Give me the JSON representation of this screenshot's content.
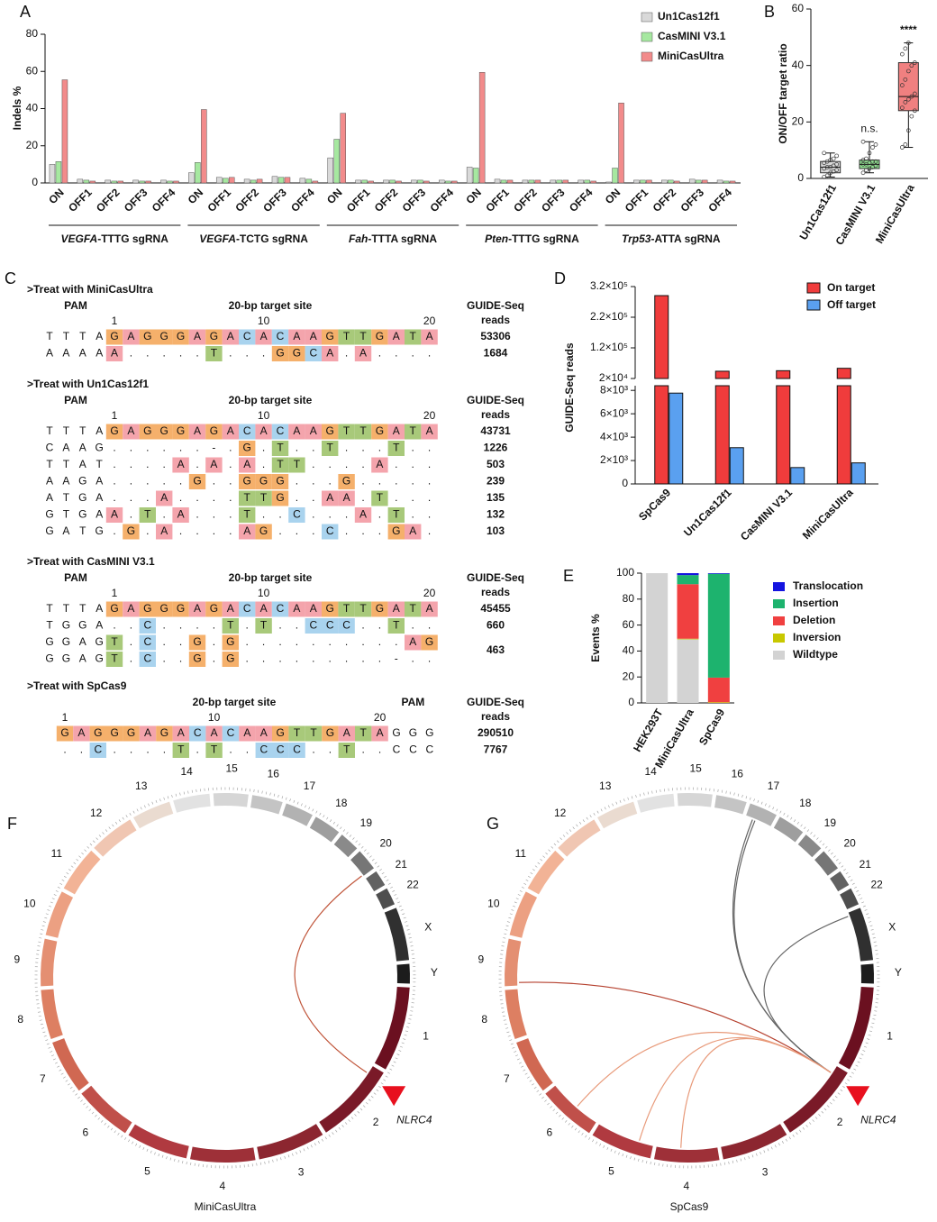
{
  "panel_labels": [
    "A",
    "B",
    "C",
    "D",
    "E",
    "F",
    "G"
  ],
  "chart_data": [
    {
      "type": "bar",
      "ylabel": "Indels %",
      "categories": [
        "ON",
        "OFF1",
        "OFF2",
        "OFF3",
        "OFF4",
        "ON",
        "OFF1",
        "OFF2",
        "OFF3",
        "OFF4",
        "ON",
        "OFF1",
        "OFF2",
        "OFF3",
        "OFF4",
        "ON",
        "OFF1",
        "OFF2",
        "OFF3",
        "OFF4",
        "ON",
        "OFF1",
        "OFF2",
        "OFF3",
        "OFF4"
      ],
      "groups": [
        {
          "italic": "VEGFA",
          "text": "-TTTG sgRNA"
        },
        {
          "italic": "VEGFA",
          "text": "-TCTG sgRNA"
        },
        {
          "italic": "Fah",
          "text": "-TTTA sgRNA"
        },
        {
          "italic": "Pten",
          "text": "-TTTG sgRNA"
        },
        {
          "italic": "Trp53",
          "text": "-ATTA sgRNA"
        }
      ],
      "series": [
        {
          "name": "Un1Cas12f1",
          "color": "#d9d9d9",
          "values": [
            10,
            2,
            1.5,
            1.5,
            1.5,
            5.5,
            3,
            2,
            3.5,
            2.5,
            13.5,
            1.5,
            1.5,
            1.5,
            1.5,
            8.5,
            2,
            1.5,
            1.5,
            1.5,
            0.5,
            1.5,
            1.5,
            2,
            1.5
          ]
        },
        {
          "name": "CasMINI V3.1",
          "color": "#a6e8a0",
          "values": [
            11.5,
            1.5,
            1,
            1,
            1,
            11,
            2.5,
            1.5,
            3,
            2,
            23.5,
            1.5,
            1.5,
            1.5,
            1,
            8,
            1.5,
            1.5,
            1.5,
            1.5,
            8,
            1.5,
            1.5,
            1.5,
            1
          ]
        },
        {
          "name": "MiniCasUltra",
          "color": "#f28b8b",
          "values": [
            55.5,
            1,
            1,
            1,
            1,
            39.5,
            3,
            2,
            3,
            1,
            37.5,
            1,
            1,
            1,
            1,
            59.5,
            1.5,
            1.5,
            1.5,
            1,
            43,
            1.5,
            1,
            1.5,
            1
          ]
        }
      ],
      "ylim": [
        0,
        80
      ],
      "yticks": [
        0,
        20,
        40,
        60,
        80
      ]
    },
    {
      "type": "box",
      "ylabel": "ON/OFF target ratio",
      "categories": [
        "Un1Cas12f1",
        "CasMINI V3.1",
        "MiniCasUltra"
      ],
      "colors": [
        "#d9d9d9",
        "#90e090",
        "#f08080"
      ],
      "min": [
        0.5,
        2,
        11
      ],
      "q1": [
        2,
        3.5,
        24
      ],
      "median": [
        4,
        5,
        29
      ],
      "q3": [
        6,
        6.5,
        41
      ],
      "max": [
        9,
        13,
        48
      ],
      "points": [
        [
          0.5,
          1,
          2,
          2.5,
          3,
          3.5,
          4,
          4,
          4.5,
          5,
          5.5,
          6,
          6.5,
          7,
          8,
          9
        ],
        [
          2,
          3,
          3.5,
          4,
          4.5,
          5,
          5,
          5.5,
          6,
          6,
          6.5,
          7,
          9,
          11,
          12,
          13
        ],
        [
          11,
          12,
          17,
          22,
          24,
          25,
          27,
          28,
          29,
          30,
          33,
          35,
          38,
          40,
          41,
          44,
          46,
          48
        ]
      ],
      "annotations": [
        null,
        "n.s.",
        "****"
      ],
      "ylim": [
        0,
        60
      ],
      "yticks": [
        0,
        20,
        40,
        60
      ]
    },
    {
      "type": "broken_bar",
      "ylabel": "GUIDE-Seq reads",
      "categories": [
        "SpCas9",
        "Un1Cas12f1",
        "CasMINI V3.1",
        "MiniCasUltra"
      ],
      "series": [
        {
          "name": "On target",
          "color": "#f03c3c",
          "values": [
            290510,
            43731,
            45455,
            53306
          ]
        },
        {
          "name": "Off target",
          "color": "#5aa0f0",
          "values": [
            7767,
            3100,
            1400,
            1800
          ]
        }
      ],
      "ylim": [
        0,
        8400
      ],
      "yticks": [
        0,
        {
          "value": 2000,
          "label": "2×10³"
        },
        {
          "value": 4000,
          "label": "4×10³"
        },
        {
          "value": 6000,
          "label": "6×10³"
        },
        {
          "value": 8000,
          "label": "8×10³"
        }
      ],
      "ylim_upper": [
        20000,
        320000
      ],
      "yticks_upper": [
        {
          "value": 20000,
          "label": "2×10⁴"
        },
        {
          "value": 120000,
          "label": "1.2×10⁵"
        },
        {
          "value": 220000,
          "label": "2.2×10⁵"
        },
        {
          "value": 320000,
          "label": "3.2×10⁵"
        }
      ]
    },
    {
      "type": "stacked_bar",
      "ylabel": "Events %",
      "categories": [
        "HEK293T",
        "MiniCasUltra",
        "SpCas9"
      ],
      "series": [
        {
          "name": "Translocation",
          "color": "#1414e0",
          "values": [
            0,
            1.5,
            0.5
          ]
        },
        {
          "name": "Insertion",
          "color": "#1db36e",
          "values": [
            0,
            7,
            80
          ]
        },
        {
          "name": "Deletion",
          "color": "#f04040",
          "values": [
            0,
            42,
            19
          ]
        },
        {
          "name": "Inversion",
          "color": "#c8c800",
          "values": [
            0,
            0.5,
            0.5
          ]
        },
        {
          "name": "Wildtype",
          "color": "#d3d3d3",
          "values": [
            100,
            49,
            0
          ]
        }
      ],
      "ylim": [
        0,
        100
      ],
      "yticks": [
        0,
        20,
        40,
        60,
        80,
        100
      ]
    }
  ],
  "alignments": {
    "base_colors": {
      "A": "#f4a4ac",
      "G": "#f5b06b",
      "C": "#a9d3ee",
      "T": "#a8c97a"
    },
    "blocks": [
      {
        "title": ">Treat with MiniCasUltra",
        "pam_label": "PAM",
        "site_label": "20-bp target site",
        "reads_header": [
          "GUIDE-Seq",
          "reads"
        ],
        "pam_side": "left",
        "positions": [
          1,
          10,
          20
        ],
        "rows": [
          {
            "pam": "TTTA",
            "target": "GAGGGAGACACAAGTTGATA",
            "reads": 53306
          },
          {
            "pam": "AAAA",
            "target": "A.....T...GGCA.A....",
            "reads": 1684
          }
        ]
      },
      {
        "title": ">Treat with Un1Cas12f1",
        "pam_label": "PAM",
        "site_label": "20-bp target site",
        "reads_header": [
          "GUIDE-Seq",
          "reads"
        ],
        "pam_side": "left",
        "positions": [
          1,
          10,
          20
        ],
        "rows": [
          {
            "pam": "TTTA",
            "target": "GAGGGAGACACAAGTTGATA",
            "reads": 43731
          },
          {
            "pam": "CAAG",
            "target": "......-.G.T..T...T..",
            "reads": 1226
          },
          {
            "pam": "TTAT",
            "target": "....A.A.A.TT....A...",
            "reads": 503
          },
          {
            "pam": "AAGA",
            "target": ".....G..GGG...G.....",
            "reads": 239
          },
          {
            "pam": "ATGA",
            "target": "...A....TTG..AA.T...",
            "reads": 135
          },
          {
            "pam": "GTGA",
            "target": "A.T.A...T..C...A.T..",
            "reads": 132
          },
          {
            "pam": "GATG",
            "target": ".G.A....AG...C...GA.",
            "reads": 103
          }
        ]
      },
      {
        "title": ">Treat with CasMINI V3.1",
        "pam_label": "PAM",
        "site_label": "20-bp target site",
        "reads_header": [
          "GUIDE-Seq",
          "reads"
        ],
        "pam_side": "left",
        "positions": [
          1,
          10,
          20
        ],
        "rows": [
          {
            "pam": "TTTA",
            "target": "GAGGGAGACACAAGTTGATA",
            "reads": 45455
          },
          {
            "pam": "TGGA",
            "target": "..C....T.T..CCC..T..",
            "reads": 660
          },
          {
            "pam": "GGAG",
            "target": "T.C..G.G..........AG",
            "reads": 463
          },
          {
            "pam": "GGAG",
            "target": "T.C..G.G.........-.."
          }
        ]
      },
      {
        "title": ">Treat with SpCas9",
        "pam_label": "PAM",
        "site_label": "20-bp target site",
        "reads_header": [
          "GUIDE-Seq",
          "reads"
        ],
        "pam_side": "right",
        "positions": [
          1,
          10,
          20
        ],
        "rows": [
          {
            "pam": "GGG",
            "target": "GAGGGAGACACAAGTTGATA",
            "reads": 290510
          },
          {
            "pam": "CCC",
            "target": "..C....T.T..CCC..T..",
            "reads": 7767
          }
        ]
      }
    ]
  },
  "circos": {
    "chromosomes": [
      "1",
      "2",
      "3",
      "4",
      "5",
      "6",
      "7",
      "8",
      "9",
      "10",
      "11",
      "12",
      "13",
      "14",
      "15",
      "16",
      "17",
      "18",
      "19",
      "20",
      "21",
      "22",
      "X",
      "Y"
    ],
    "lengths_mb": [
      249,
      242,
      198,
      190,
      181,
      171,
      159,
      145,
      138,
      134,
      135,
      133,
      114,
      107,
      102,
      90,
      83,
      80,
      59,
      64,
      47,
      51,
      156,
      57
    ],
    "colors": [
      "#6b1020",
      "#7a1a28",
      "#8c2630",
      "#9e3038",
      "#b03a40",
      "#c0504a",
      "#d06852",
      "#dd7f62",
      "#e48f72",
      "#eca082",
      "#f2b396",
      "#f0c6b2",
      "#eadbd0",
      "#e2e2e2",
      "#d6d6d6",
      "#c4c4c4",
      "#b2b2b2",
      "#9e9e9e",
      "#8a8a8a",
      "#767676",
      "#626262",
      "#4e4e4e",
      "#303030",
      "#1c1c1c"
    ],
    "plots": [
      {
        "title": "MiniCasUltra",
        "marker": "NLRC4"
      },
      {
        "title": "SpCas9",
        "marker": "NLRC4"
      }
    ]
  }
}
